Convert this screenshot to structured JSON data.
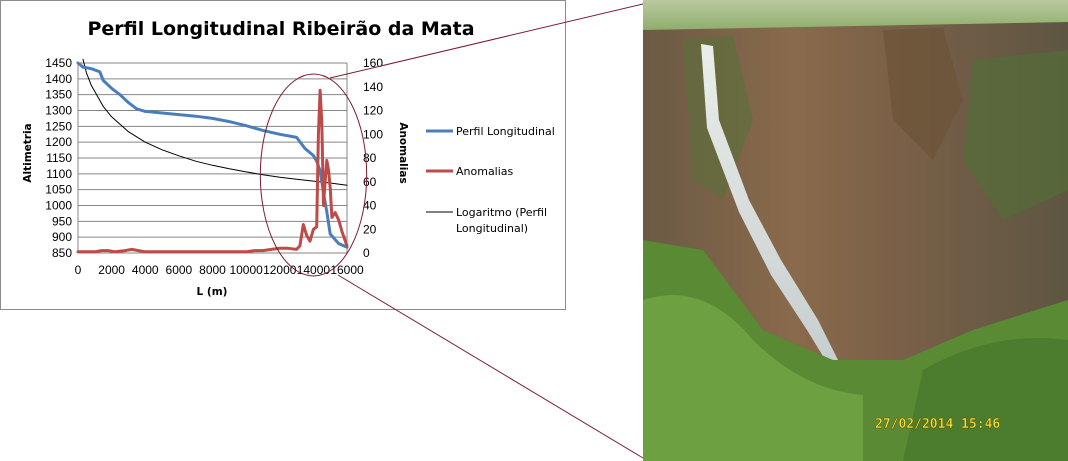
{
  "chart_data": {
    "type": "line",
    "title": "Perfil Longitudinal Ribeirão da Mata",
    "xlabel": "L (m)",
    "ylabel": "Altimetria",
    "y2label": "Anomalias",
    "xlim": [
      0,
      16000
    ],
    "ylim": [
      850,
      1450
    ],
    "y2lim": [
      0,
      160
    ],
    "x_ticks": [
      0,
      2000,
      4000,
      6000,
      8000,
      10000,
      12000,
      14000,
      16000
    ],
    "y_ticks": [
      850,
      900,
      950,
      1000,
      1050,
      1100,
      1150,
      1200,
      1250,
      1300,
      1350,
      1400,
      1450
    ],
    "y2_ticks": [
      0,
      20,
      40,
      60,
      80,
      100,
      120,
      140,
      160
    ],
    "grid": true,
    "legend_position": "right",
    "series": [
      {
        "name": "Perfil Longitudinal",
        "axis": "left",
        "color": "#4a7ebb",
        "x": [
          0,
          300,
          800,
          1300,
          1500,
          2000,
          2500,
          3000,
          3500,
          4000,
          5000,
          6000,
          7000,
          8000,
          9000,
          10000,
          11000,
          12000,
          13000,
          13500,
          14000,
          14200,
          14400,
          14600,
          14800,
          15000,
          15500,
          16000
        ],
        "y": [
          1450,
          1437,
          1432,
          1422,
          1395,
          1370,
          1350,
          1325,
          1305,
          1297,
          1292,
          1287,
          1282,
          1275,
          1265,
          1252,
          1237,
          1225,
          1215,
          1180,
          1158,
          1140,
          1110,
          1040,
          980,
          910,
          880,
          868
        ]
      },
      {
        "name": "Anomalias",
        "axis": "right",
        "color": "#be4b48",
        "x": [
          0,
          1000,
          1400,
          1800,
          2200,
          2800,
          3200,
          3600,
          4000,
          5000,
          6000,
          7000,
          8000,
          9000,
          10000,
          10500,
          11000,
          11500,
          12000,
          12500,
          13000,
          13200,
          13400,
          13600,
          13800,
          14000,
          14200,
          14300,
          14400,
          14500,
          14600,
          14700,
          14800,
          14900,
          15000,
          15100,
          15300,
          15500,
          15700,
          16000
        ],
        "y": [
          1,
          1,
          2,
          2,
          1,
          2,
          3,
          2,
          1,
          1,
          1,
          1,
          1,
          1,
          1,
          2,
          2,
          3,
          4,
          4,
          3,
          6,
          24,
          15,
          10,
          20,
          22,
          100,
          137,
          110,
          40,
          60,
          78,
          70,
          55,
          30,
          34,
          28,
          18,
          6
        ]
      },
      {
        "name": "Logaritmo (Perfil Longitudinal)",
        "axis": "left",
        "color": "#000000",
        "trendline": "logarithmic",
        "x": [
          300,
          500,
          800,
          1000,
          1500,
          2000,
          3000,
          4000,
          5000,
          6000,
          7000,
          8000,
          9000,
          10000,
          11000,
          12000,
          13000,
          14000,
          15000,
          16000
        ],
        "y": [
          1462,
          1419,
          1378,
          1360,
          1313,
          1280,
          1233,
          1200,
          1176,
          1157,
          1140,
          1127,
          1116,
          1106,
          1097,
          1089,
          1083,
          1077,
          1071,
          1064
        ]
      }
    ],
    "annotations": [
      {
        "shape": "ellipse",
        "color": "#7a1d2e",
        "around_x": [
          11200,
          16100
        ]
      }
    ]
  },
  "photo": {
    "description_icon": "waterfall-photo",
    "timestamp": "27/02/2014  15:46"
  },
  "colors": {
    "connector": "#7a1d2e",
    "gridline": "#868686"
  }
}
